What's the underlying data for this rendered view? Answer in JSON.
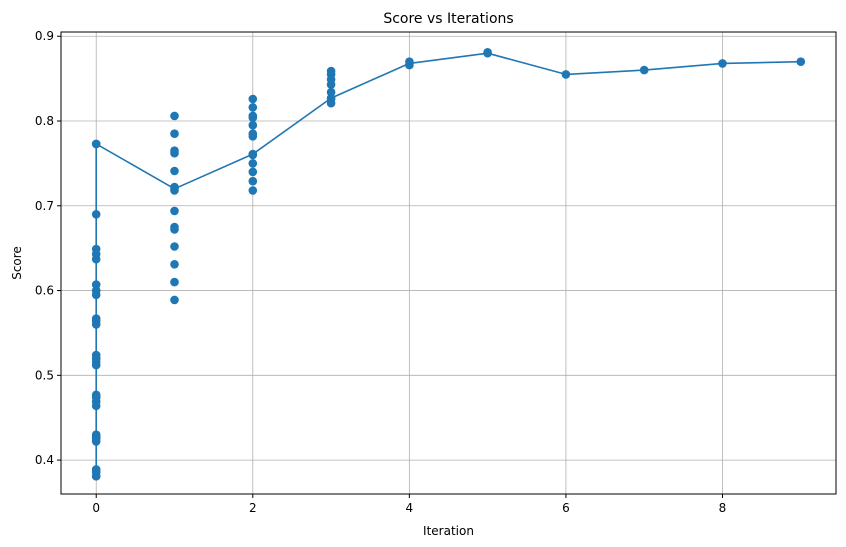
{
  "chart_data": {
    "type": "line",
    "title": "Score vs Iterations",
    "xlabel": "Iteration",
    "ylabel": "Score",
    "xlim": [
      -0.45,
      9.45
    ],
    "ylim": [
      0.36,
      0.905
    ],
    "xticks": [
      0,
      2,
      4,
      6,
      8
    ],
    "xtick_labels": [
      "0",
      "2",
      "4",
      "6",
      "8"
    ],
    "yticks": [
      0.4,
      0.5,
      0.6,
      0.7,
      0.8,
      0.9
    ],
    "ytick_labels": [
      "0.4",
      "0.5",
      "0.6",
      "0.7",
      "0.8",
      "0.9"
    ],
    "grid": true,
    "series": [
      {
        "color": "#1f77b4",
        "marker": "circle",
        "x": [
          0,
          0,
          0,
          0,
          0,
          0,
          0,
          0,
          0,
          0,
          0,
          0,
          0,
          0,
          0,
          0,
          0,
          0,
          0,
          0,
          0,
          0,
          0,
          0,
          0,
          0,
          0,
          0,
          0,
          0,
          0,
          0,
          1,
          1,
          1,
          1,
          1,
          1,
          1,
          1,
          1,
          1,
          1,
          1,
          1,
          1,
          1,
          2,
          2,
          2,
          2,
          2,
          2,
          2,
          2,
          2,
          2,
          2,
          2,
          2,
          3,
          3,
          3,
          3,
          3,
          3,
          3,
          3,
          4,
          4,
          5,
          5,
          6,
          7,
          8,
          9
        ],
        "y": [
          0.773,
          0.69,
          0.649,
          0.643,
          0.637,
          0.607,
          0.6,
          0.595,
          0.567,
          0.564,
          0.56,
          0.524,
          0.52,
          0.516,
          0.512,
          0.477,
          0.474,
          0.469,
          0.464,
          0.43,
          0.428,
          0.426,
          0.422,
          0.389,
          0.386,
          0.381,
          0.381,
          0.386,
          0.426,
          0.474,
          0.52,
          0.773,
          0.72,
          0.806,
          0.785,
          0.765,
          0.762,
          0.741,
          0.722,
          0.718,
          0.694,
          0.675,
          0.672,
          0.652,
          0.631,
          0.61,
          0.589,
          0.761,
          0.826,
          0.816,
          0.806,
          0.804,
          0.795,
          0.785,
          0.782,
          0.76,
          0.75,
          0.74,
          0.729,
          0.718,
          0.827,
          0.859,
          0.855,
          0.849,
          0.843,
          0.834,
          0.826,
          0.821,
          0.87,
          0.866,
          0.88,
          0.881,
          0.855,
          0.86,
          0.868,
          0.87
        ],
        "path": [
          [
            0,
            0.773
          ],
          [
            0,
            0.381
          ],
          [
            0,
            0.773
          ],
          [
            1,
            0.72
          ],
          [
            2,
            0.761
          ],
          [
            3,
            0.827
          ],
          [
            4,
            0.868
          ],
          [
            5,
            0.88
          ],
          [
            6,
            0.855
          ],
          [
            7,
            0.86
          ],
          [
            8,
            0.868
          ],
          [
            9,
            0.87
          ]
        ]
      }
    ]
  }
}
